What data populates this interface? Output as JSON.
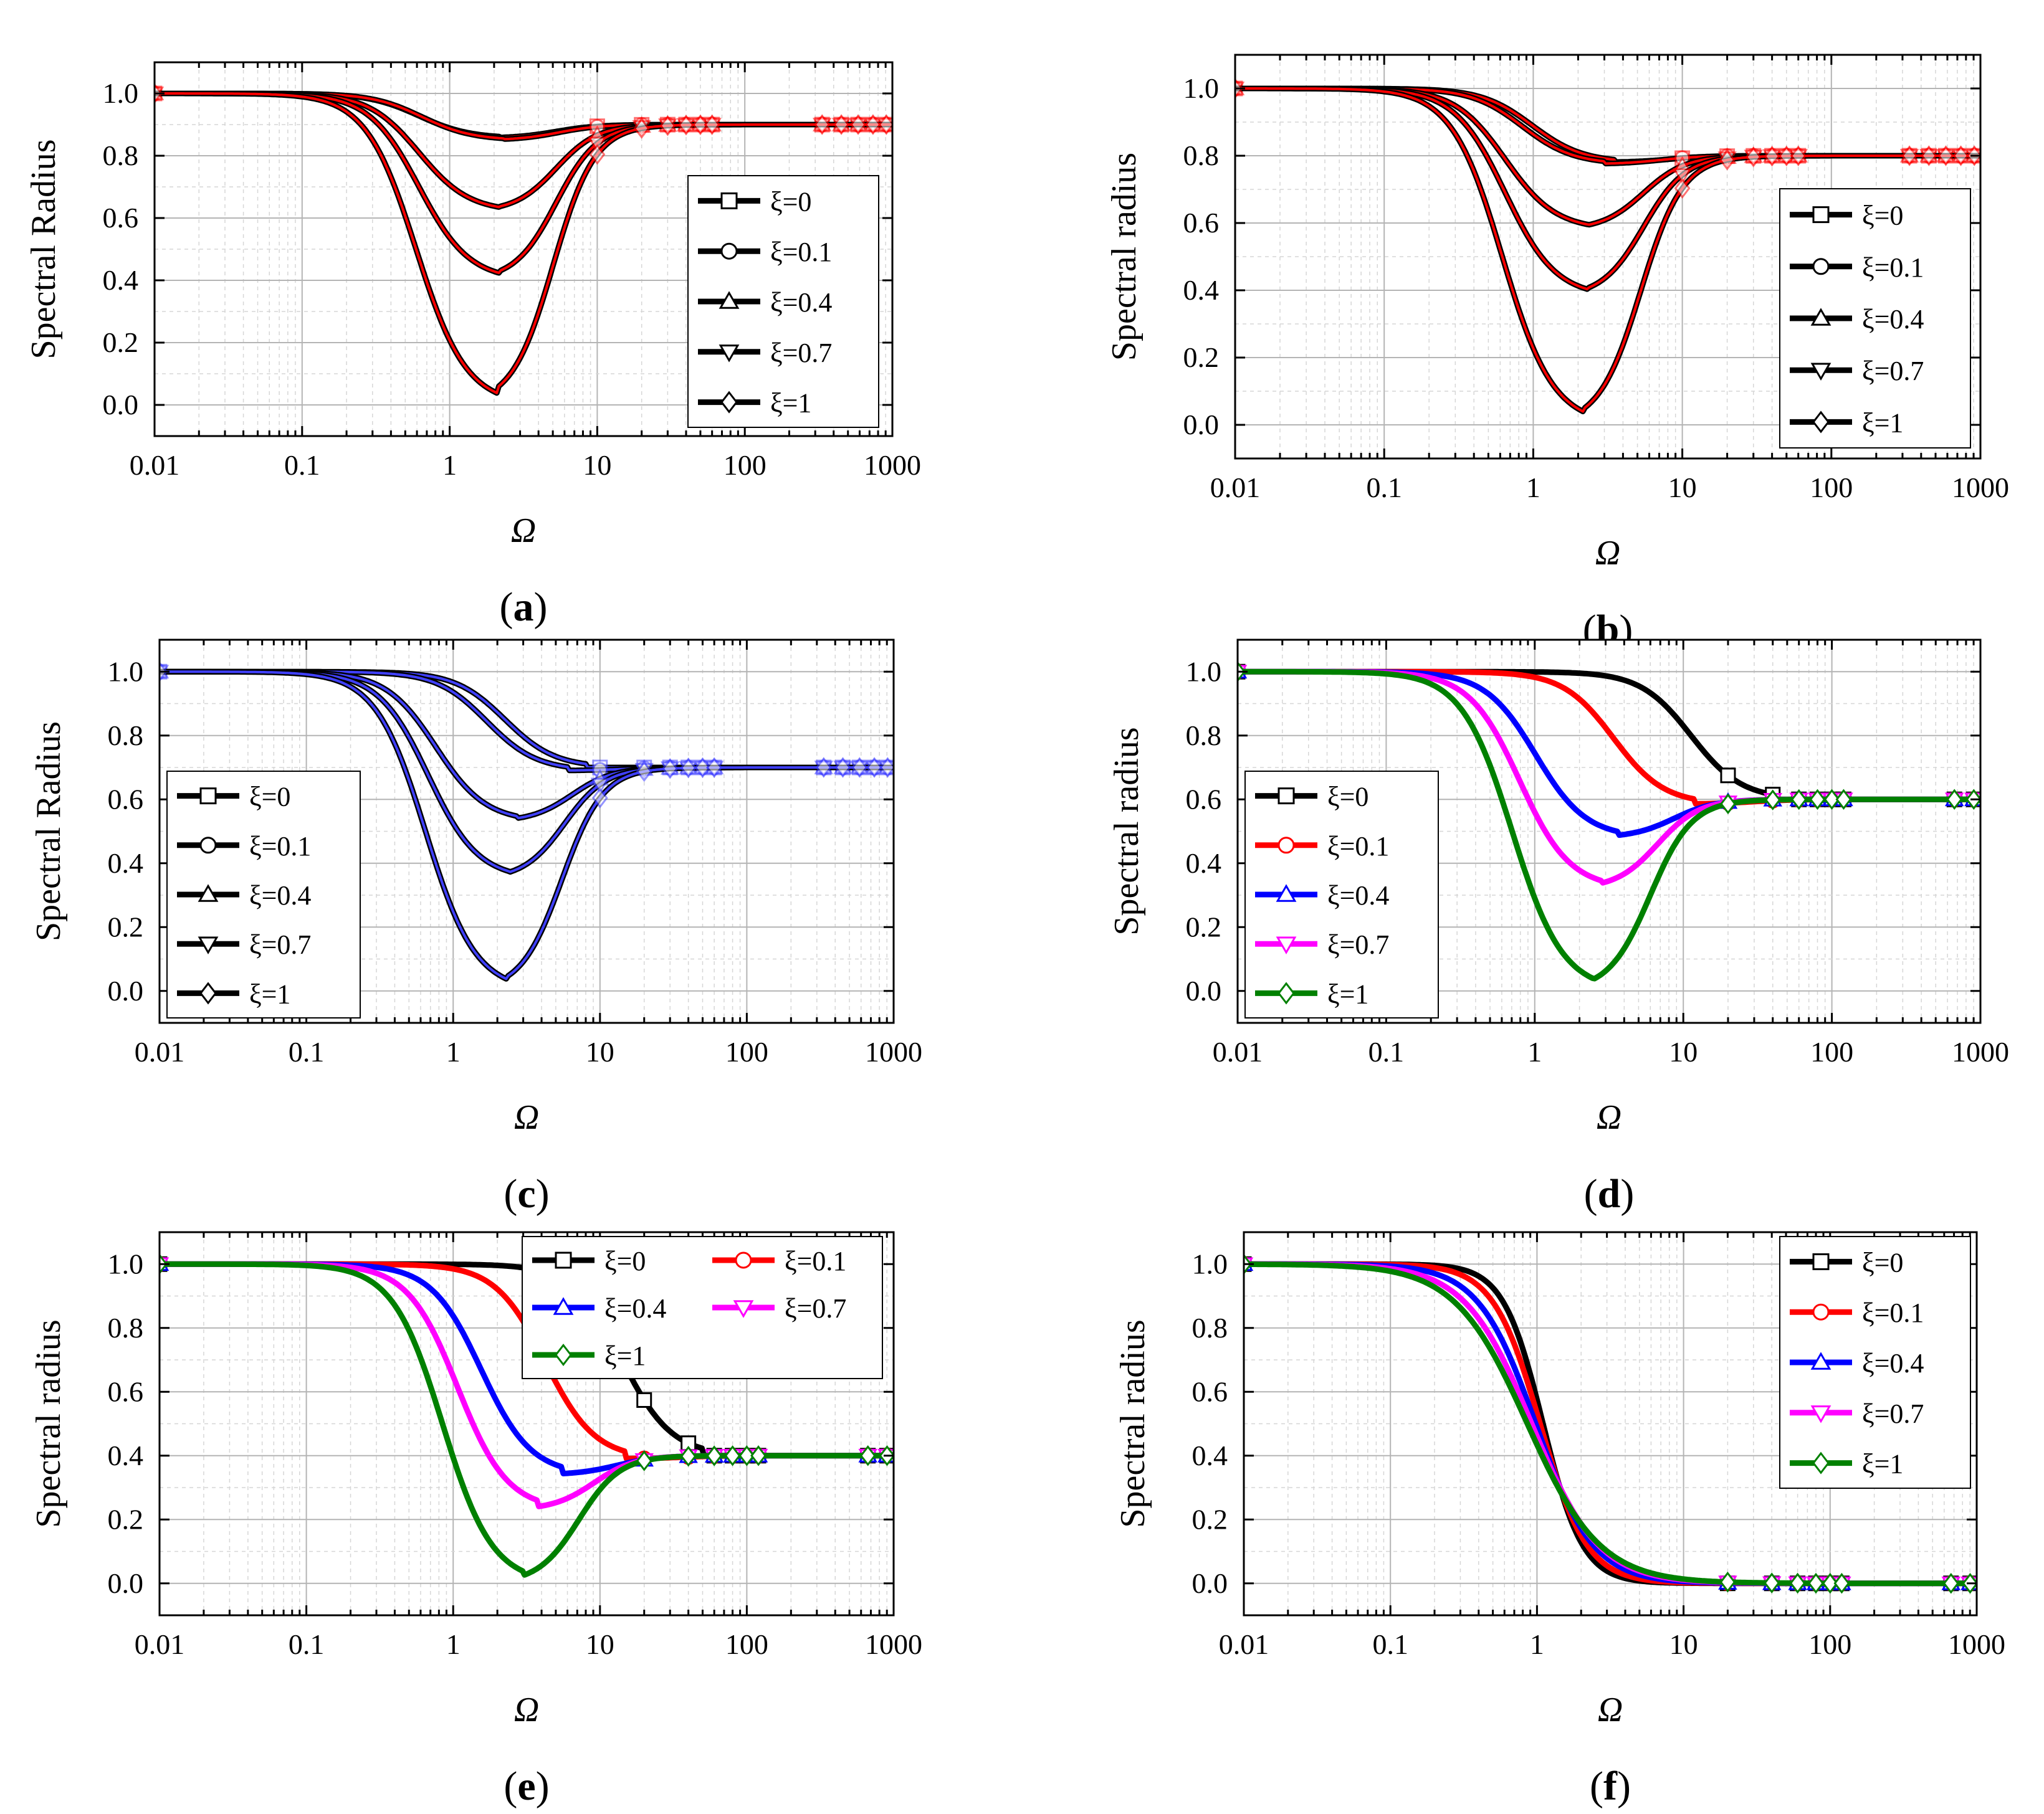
{
  "figure": {
    "panels_count": 6
  },
  "chart_data": [
    {
      "id": "a",
      "caption_letter": "a",
      "type": "line",
      "xscale": "log",
      "xlabel": "Ω",
      "ylabel": "Spectral Radius",
      "xlim": [
        0.01,
        1000
      ],
      "ylim": [
        -0.1,
        1.1
      ],
      "x_ticks": [
        "0.01",
        "0.1",
        "1",
        "10",
        "100",
        "1000"
      ],
      "y_ticks": [
        "0.0",
        "0.2",
        "0.4",
        "0.6",
        "0.8",
        "1.0"
      ],
      "grid": true,
      "legend_position": "right",
      "legend_columns": 1,
      "overlay": {
        "color": "#ff0000",
        "type": "reference"
      },
      "marker_start": 10,
      "series": [
        {
          "name": "ξ=0",
          "color": "#000000",
          "marker": "square",
          "min_x": 2.2,
          "min_y": 0.856,
          "limit": 0.9
        },
        {
          "name": "ξ=0.1",
          "color": "#000000",
          "marker": "circle",
          "min_x": 2.3,
          "min_y": 0.85,
          "limit": 0.9
        },
        {
          "name": "ξ=0.4",
          "color": "#000000",
          "marker": "triangle-up",
          "min_x": 2.2,
          "min_y": 0.62,
          "limit": 0.9
        },
        {
          "name": "ξ=0.7",
          "color": "#000000",
          "marker": "triangle-down",
          "min_x": 2.2,
          "min_y": 0.4,
          "limit": 0.9
        },
        {
          "name": "ξ=1",
          "color": "#000000",
          "marker": "diamond",
          "min_x": 2.1,
          "min_y": 0.0,
          "limit": 0.9
        }
      ]
    },
    {
      "id": "b",
      "caption_letter": "b",
      "type": "line",
      "xscale": "log",
      "xlabel": "Ω",
      "ylabel": "Spectral radius",
      "xlim": [
        0.01,
        1000
      ],
      "ylim": [
        -0.1,
        1.1
      ],
      "x_ticks": [
        "0.01",
        "0.1",
        "1",
        "10",
        "100",
        "1000"
      ],
      "y_ticks": [
        "0.0",
        "0.2",
        "0.4",
        "0.6",
        "0.8",
        "1.0"
      ],
      "grid": true,
      "legend_position": "right",
      "legend_columns": 1,
      "overlay": {
        "color": "#ff0000",
        "type": "reference"
      },
      "marker_start": 10,
      "series": [
        {
          "name": "ξ=0",
          "color": "#000000",
          "marker": "square",
          "min_x": 3.5,
          "min_y": 0.78,
          "limit": 0.8
        },
        {
          "name": "ξ=0.1",
          "color": "#000000",
          "marker": "circle",
          "min_x": 3.0,
          "min_y": 0.775,
          "limit": 0.8
        },
        {
          "name": "ξ=0.4",
          "color": "#000000",
          "marker": "triangle-up",
          "min_x": 2.3,
          "min_y": 0.58,
          "limit": 0.8
        },
        {
          "name": "ξ=0.7",
          "color": "#000000",
          "marker": "triangle-down",
          "min_x": 2.3,
          "min_y": 0.38,
          "limit": 0.8
        },
        {
          "name": "ξ=1",
          "color": "#000000",
          "marker": "diamond",
          "min_x": 2.2,
          "min_y": 0.0,
          "limit": 0.8
        }
      ]
    },
    {
      "id": "c",
      "caption_letter": "c",
      "type": "line",
      "xscale": "log",
      "xlabel": "Ω",
      "ylabel": "Spectral Radius",
      "xlim": [
        0.01,
        1000
      ],
      "ylim": [
        -0.1,
        1.1
      ],
      "x_ticks": [
        "0.01",
        "0.1",
        "1",
        "10",
        "100",
        "1000"
      ],
      "y_ticks": [
        "0.0",
        "0.2",
        "0.4",
        "0.6",
        "0.8",
        "1.0"
      ],
      "grid": true,
      "legend_position": "left",
      "legend_columns": 1,
      "overlay": {
        "color": "#4040ff",
        "type": "reference"
      },
      "marker_start": 10,
      "series": [
        {
          "name": "ξ=0",
          "color": "#000000",
          "marker": "square",
          "min_x": 8.0,
          "min_y": 0.7,
          "limit": 0.7
        },
        {
          "name": "ξ=0.1",
          "color": "#000000",
          "marker": "circle",
          "min_x": 6.0,
          "min_y": 0.69,
          "limit": 0.7
        },
        {
          "name": "ξ=0.4",
          "color": "#000000",
          "marker": "triangle-up",
          "min_x": 2.7,
          "min_y": 0.53,
          "limit": 0.7
        },
        {
          "name": "ξ=0.7",
          "color": "#000000",
          "marker": "triangle-down",
          "min_x": 2.4,
          "min_y": 0.35,
          "limit": 0.7
        },
        {
          "name": "ξ=1",
          "color": "#000000",
          "marker": "diamond",
          "min_x": 2.3,
          "min_y": 0.0,
          "limit": 0.7
        }
      ]
    },
    {
      "id": "d",
      "caption_letter": "d",
      "type": "line",
      "xscale": "log",
      "xlabel": "Ω",
      "ylabel": "Spectral radius",
      "xlim": [
        0.01,
        1000
      ],
      "ylim": [
        -0.1,
        1.1
      ],
      "x_ticks": [
        "0.01",
        "0.1",
        "1",
        "10",
        "100",
        "1000"
      ],
      "y_ticks": [
        "0.0",
        "0.2",
        "0.4",
        "0.6",
        "0.8",
        "1.0"
      ],
      "grid": true,
      "legend_position": "left",
      "legend_columns": 1,
      "marker_start": 20,
      "series": [
        {
          "name": "ξ=0",
          "color": "#000000",
          "marker": "square",
          "min_x": 40,
          "min_y": 0.6,
          "limit": 0.6
        },
        {
          "name": "ξ=0.1",
          "color": "#ff0000",
          "marker": "circle",
          "min_x": 12,
          "min_y": 0.585,
          "limit": 0.6
        },
        {
          "name": "ξ=0.4",
          "color": "#0000ff",
          "marker": "triangle-up",
          "min_x": 3.6,
          "min_y": 0.48,
          "limit": 0.6
        },
        {
          "name": "ξ=0.7",
          "color": "#ff00ff",
          "marker": "triangle-down",
          "min_x": 2.8,
          "min_y": 0.32,
          "limit": 0.6
        },
        {
          "name": "ξ=1",
          "color": "#008000",
          "marker": "diamond",
          "min_x": 2.5,
          "min_y": 0.0,
          "limit": 0.6
        }
      ]
    },
    {
      "id": "e",
      "caption_letter": "e",
      "type": "line",
      "xscale": "log",
      "xlabel": "Ω",
      "ylabel": "Spectral radius",
      "xlim": [
        0.01,
        1000
      ],
      "ylim": [
        -0.1,
        1.1
      ],
      "x_ticks": [
        "0.01",
        "0.1",
        "1",
        "10",
        "100",
        "1000"
      ],
      "y_ticks": [
        "0.0",
        "0.2",
        "0.4",
        "0.6",
        "0.8",
        "1.0"
      ],
      "grid": true,
      "legend_position": "top-right",
      "legend_columns": 2,
      "marker_start": 20,
      "series": [
        {
          "name": "ξ=0",
          "color": "#000000",
          "marker": "square",
          "min_x": 50,
          "min_y": 0.4,
          "limit": 0.4
        },
        {
          "name": "ξ=0.1",
          "color": "#ff0000",
          "marker": "circle",
          "min_x": 15,
          "min_y": 0.39,
          "limit": 0.4
        },
        {
          "name": "ξ=0.4",
          "color": "#0000ff",
          "marker": "triangle-up",
          "min_x": 5.5,
          "min_y": 0.34,
          "limit": 0.4
        },
        {
          "name": "ξ=0.7",
          "color": "#ff00ff",
          "marker": "triangle-down",
          "min_x": 3.8,
          "min_y": 0.23,
          "limit": 0.4
        },
        {
          "name": "ξ=1",
          "color": "#008000",
          "marker": "diamond",
          "min_x": 3.0,
          "min_y": 0.0,
          "limit": 0.4
        }
      ]
    },
    {
      "id": "f",
      "caption_letter": "f",
      "type": "line",
      "xscale": "log",
      "xlabel": "Ω",
      "ylabel": "Spectral radius",
      "xlim": [
        0.01,
        1000
      ],
      "ylim": [
        -0.1,
        1.1
      ],
      "x_ticks": [
        "0.01",
        "0.1",
        "1",
        "10",
        "100",
        "1000"
      ],
      "y_ticks": [
        "0.0",
        "0.2",
        "0.4",
        "0.6",
        "0.8",
        "1.0"
      ],
      "grid": true,
      "legend_position": "top-right",
      "legend_columns": 1,
      "marker_start": 20,
      "series": [
        {
          "name": "ξ=0",
          "color": "#000000",
          "marker": "square",
          "mono_half": 1.1,
          "mono_power": 3.2,
          "limit": 0.0
        },
        {
          "name": "ξ=0.1",
          "color": "#ff0000",
          "marker": "circle",
          "mono_half": 1.05,
          "mono_power": 2.7,
          "limit": 0.0
        },
        {
          "name": "ξ=0.4",
          "color": "#0000ff",
          "marker": "triangle-up",
          "mono_half": 0.98,
          "mono_power": 2.2,
          "limit": 0.0
        },
        {
          "name": "ξ=0.7",
          "color": "#ff00ff",
          "marker": "triangle-down",
          "mono_half": 0.92,
          "mono_power": 1.9,
          "limit": 0.0
        },
        {
          "name": "ξ=1",
          "color": "#008000",
          "marker": "diamond",
          "mono_half": 0.86,
          "mono_power": 1.75,
          "limit": 0.0
        }
      ]
    }
  ]
}
